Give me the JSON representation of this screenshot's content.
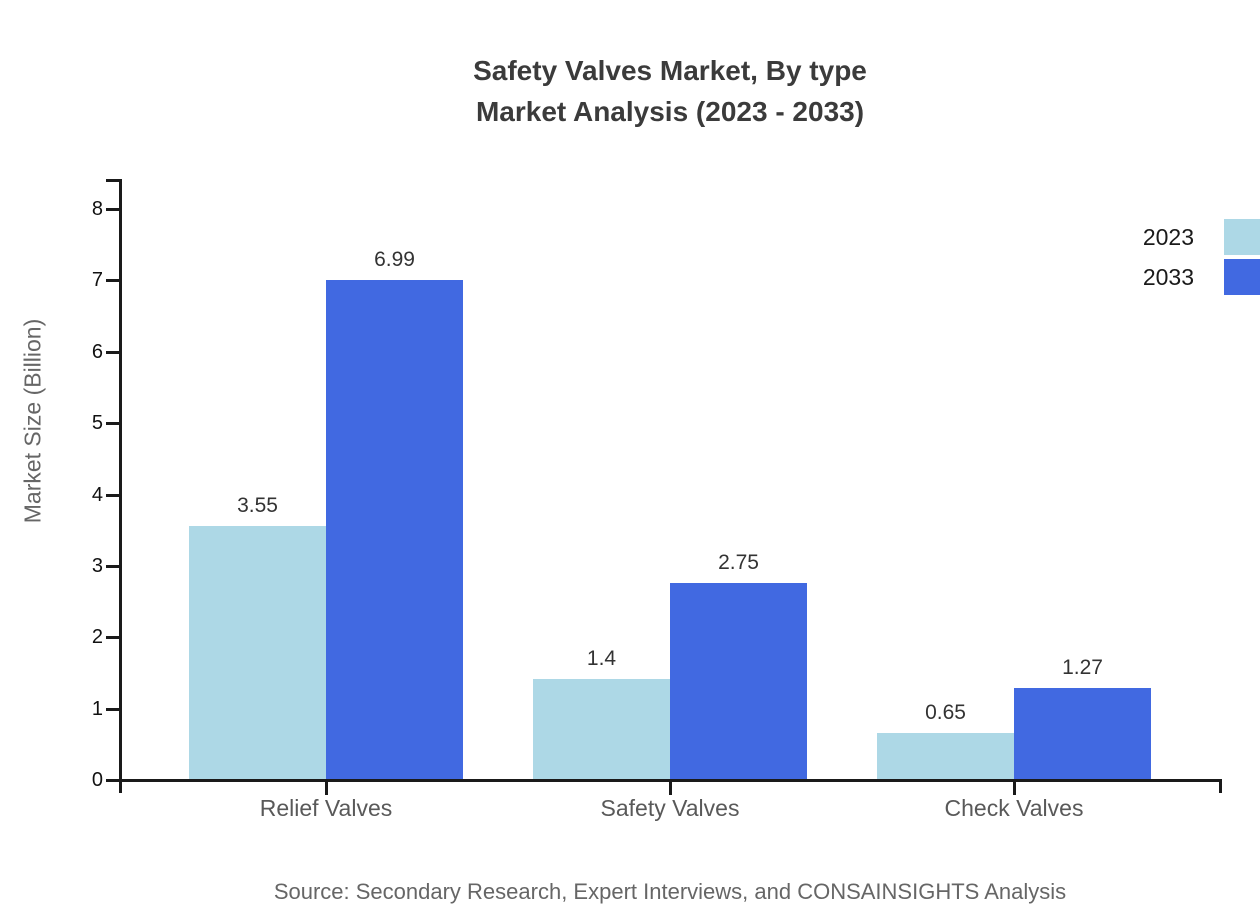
{
  "title": {
    "line1": "Safety Valves Market, By type",
    "line2": "Market Analysis (2023 - 2033)"
  },
  "source_note": "Source: Secondary Research, Expert Interviews, and CONSAINSIGHTS Analysis",
  "chart_data": {
    "type": "bar",
    "title": "Safety Valves Market, By type — Market Analysis (2023 - 2033)",
    "categories": [
      "Relief Valves",
      "Safety Valves",
      "Check Valves"
    ],
    "series": [
      {
        "name": "2023",
        "color": "#ADD8E6",
        "values": [
          3.55,
          1.4,
          0.65
        ]
      },
      {
        "name": "2033",
        "color": "#4169E1",
        "values": [
          6.99,
          2.75,
          1.27
        ]
      }
    ],
    "xlabel": "",
    "ylabel": "Market Size (Billion)",
    "ylim": [
      0,
      8
    ],
    "yticks": [
      0,
      1,
      2,
      3,
      4,
      5,
      6,
      7,
      8
    ],
    "grid": false,
    "value_labels": true,
    "legend_position": "top-right",
    "colors": {
      "axis": "#1a1a1a",
      "title_text": "#3b3b3b",
      "tick_label_text": "#111111",
      "category_label_text": "#595959",
      "axis_title_text": "#666666",
      "source_text": "#666666",
      "value_label_text": "#333333",
      "background": "#ffffff"
    }
  }
}
